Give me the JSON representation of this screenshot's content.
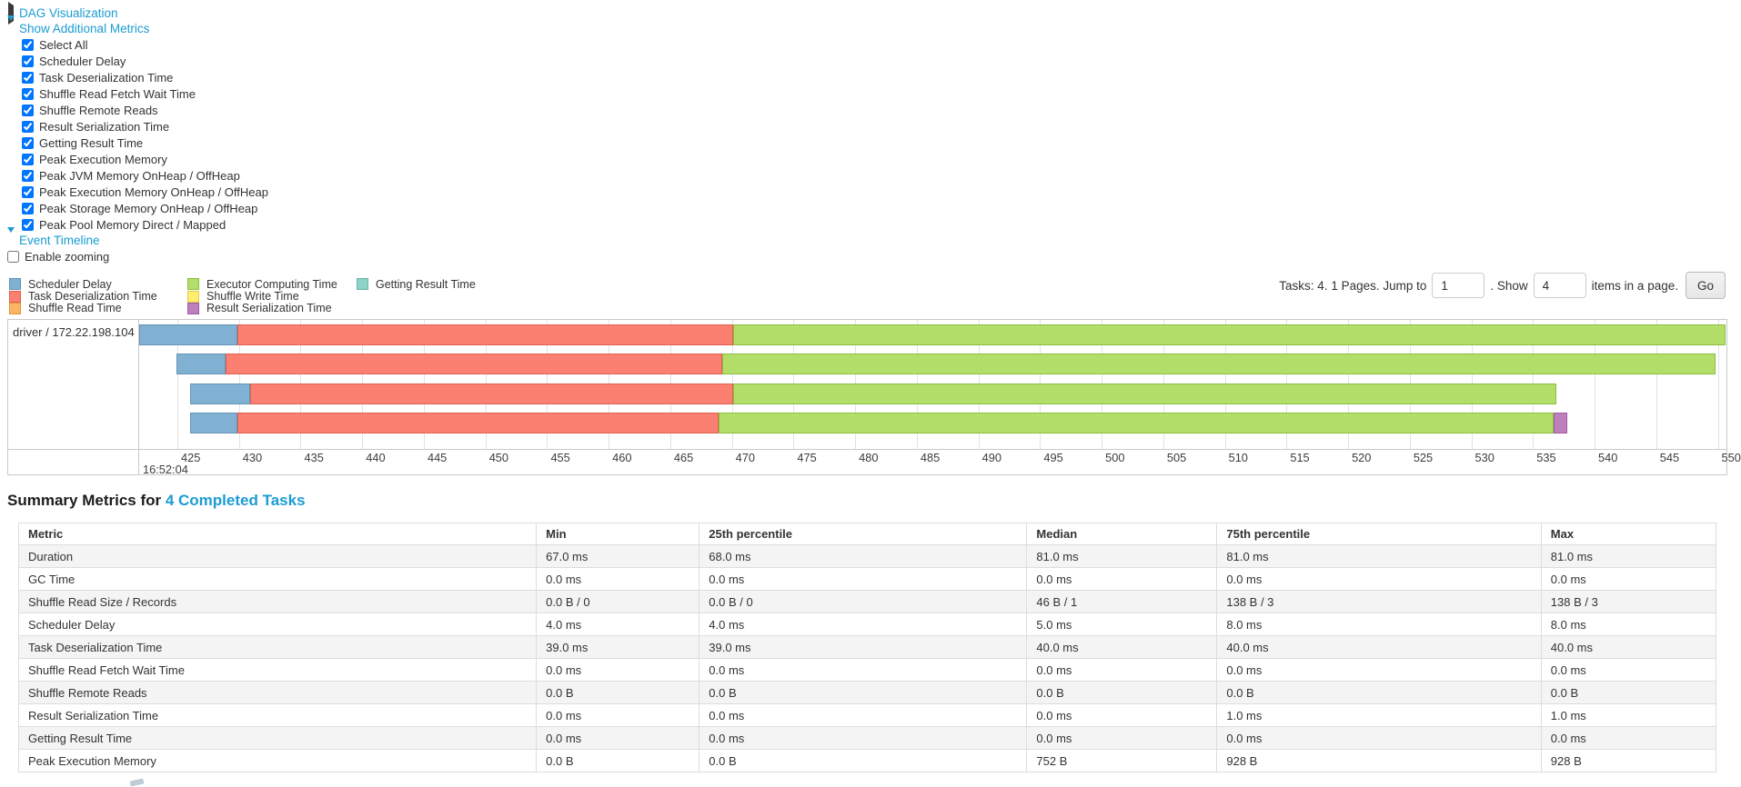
{
  "colors": {
    "link": "#1b9cd2",
    "segment": {
      "scheduler_delay": "#80B1D3",
      "task_deserialization": "#FB8072",
      "shuffle_read": "#FDB462",
      "executor_computing": "#B3DE69",
      "shuffle_write": "#FFED6F",
      "result_serialization": "#BC80BD",
      "getting_result": "#8DD3C7"
    },
    "segment_border": {
      "scheduler_delay": "#6593B5",
      "task_deserialization": "#E0604F",
      "shuffle_read": "#E39440",
      "executor_computing": "#8CBF3F",
      "shuffle_write": "#E0CE4E",
      "result_serialization": "#A15BA3",
      "getting_result": "#64B5A5"
    }
  },
  "toggles": {
    "dag": "DAG Visualization",
    "metrics": "Show Additional Metrics",
    "timeline": "Event Timeline"
  },
  "metric_checkboxes": [
    "Select All",
    "Scheduler Delay",
    "Task Deserialization Time",
    "Shuffle Read Fetch Wait Time",
    "Shuffle Remote Reads",
    "Result Serialization Time",
    "Getting Result Time",
    "Peak Execution Memory",
    "Peak JVM Memory OnHeap / OffHeap",
    "Peak Execution Memory OnHeap / OffHeap",
    "Peak Storage Memory OnHeap / OffHeap",
    "Peak Pool Memory Direct / Mapped"
  ],
  "enable_zooming": "Enable zooming",
  "legend_columns": [
    [
      {
        "label": "Scheduler Delay",
        "key": "scheduler_delay"
      },
      {
        "label": "Task Deserialization Time",
        "key": "task_deserialization"
      },
      {
        "label": "Shuffle Read Time",
        "key": "shuffle_read"
      }
    ],
    [
      {
        "label": "Executor Computing Time",
        "key": "executor_computing"
      },
      {
        "label": "Shuffle Write Time",
        "key": "shuffle_write"
      },
      {
        "label": "Result Serialization Time",
        "key": "result_serialization"
      }
    ],
    [
      {
        "label": "Getting Result Time",
        "key": "getting_result"
      }
    ]
  ],
  "pagination": {
    "summary": "Tasks: 4. 1 Pages. Jump to",
    "jump_value": "1",
    "between": ". Show",
    "show_value": "4",
    "suffix": "items in a page.",
    "go_label": "Go"
  },
  "chart_data": {
    "type": "timeline",
    "row_label": "driver / 172.22.198.104",
    "x_axis": {
      "domain_start": 421.9,
      "domain_end": 550.7,
      "unit": "milliseconds within second 16:52:04",
      "ticks": [
        425,
        430,
        435,
        440,
        445,
        450,
        455,
        460,
        465,
        470,
        475,
        480,
        485,
        490,
        495,
        500,
        505,
        510,
        515,
        520,
        525,
        530,
        535,
        540,
        545,
        550
      ],
      "major_label": "16:52:04"
    },
    "tasks": [
      {
        "segments": [
          {
            "kind": "scheduler_delay",
            "start": 421.9,
            "end": 429.9
          },
          {
            "kind": "task_deserialization",
            "start": 429.9,
            "end": 470.1
          },
          {
            "kind": "executor_computing",
            "start": 470.1,
            "end": 550.6
          }
        ]
      },
      {
        "segments": [
          {
            "kind": "scheduler_delay",
            "start": 424.9,
            "end": 428.9
          },
          {
            "kind": "task_deserialization",
            "start": 428.9,
            "end": 469.2
          },
          {
            "kind": "executor_computing",
            "start": 469.2,
            "end": 549.8
          }
        ]
      },
      {
        "segments": [
          {
            "kind": "scheduler_delay",
            "start": 426.0,
            "end": 430.9
          },
          {
            "kind": "task_deserialization",
            "start": 430.9,
            "end": 470.1
          },
          {
            "kind": "executor_computing",
            "start": 470.1,
            "end": 536.9
          }
        ]
      },
      {
        "segments": [
          {
            "kind": "scheduler_delay",
            "start": 426.0,
            "end": 429.9
          },
          {
            "kind": "task_deserialization",
            "start": 429.9,
            "end": 468.9
          },
          {
            "kind": "executor_computing",
            "start": 468.9,
            "end": 536.7
          },
          {
            "kind": "result_serialization",
            "start": 536.7,
            "end": 537.8
          }
        ]
      }
    ]
  },
  "summary_metrics": {
    "title_prefix": "Summary Metrics for ",
    "title_link": "4 Completed Tasks",
    "table": {
      "headers": [
        "Metric",
        "Min",
        "25th percentile",
        "Median",
        "75th percentile",
        "Max"
      ],
      "rows": [
        [
          "Duration",
          "67.0 ms",
          "68.0 ms",
          "81.0 ms",
          "81.0 ms",
          "81.0 ms"
        ],
        [
          "GC Time",
          "0.0 ms",
          "0.0 ms",
          "0.0 ms",
          "0.0 ms",
          "0.0 ms"
        ],
        [
          "Shuffle Read Size / Records",
          "0.0 B / 0",
          "0.0 B / 0",
          "46 B / 1",
          "138 B / 3",
          "138 B / 3"
        ],
        [
          "Scheduler Delay",
          "4.0 ms",
          "4.0 ms",
          "5.0 ms",
          "8.0 ms",
          "8.0 ms"
        ],
        [
          "Task Deserialization Time",
          "39.0 ms",
          "39.0 ms",
          "40.0 ms",
          "40.0 ms",
          "40.0 ms"
        ],
        [
          "Shuffle Read Fetch Wait Time",
          "0.0 ms",
          "0.0 ms",
          "0.0 ms",
          "0.0 ms",
          "0.0 ms"
        ],
        [
          "Shuffle Remote Reads",
          "0.0 B",
          "0.0 B",
          "0.0 B",
          "0.0 B",
          "0.0 B"
        ],
        [
          "Result Serialization Time",
          "0.0 ms",
          "0.0 ms",
          "0.0 ms",
          "1.0 ms",
          "1.0 ms"
        ],
        [
          "Getting Result Time",
          "0.0 ms",
          "0.0 ms",
          "0.0 ms",
          "0.0 ms",
          "0.0 ms"
        ],
        [
          "Peak Execution Memory",
          "0.0 B",
          "0.0 B",
          "752 B",
          "928 B",
          "928 B"
        ]
      ]
    }
  }
}
